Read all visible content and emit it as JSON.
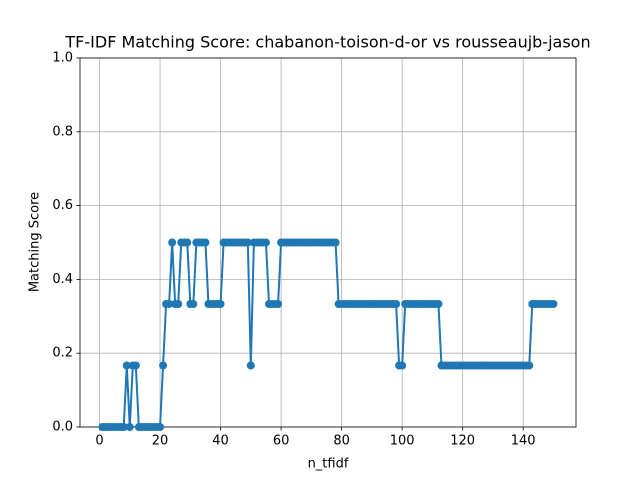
{
  "chart_data": {
    "type": "line",
    "title": "TF-IDF Matching Score: chabanon-toison-d-or vs rousseaujb-jason",
    "x_label": "n_tfidf",
    "y_label": "Matching Score",
    "color": "#1f77b4",
    "grid": true,
    "xlim": [
      -6.45,
      157.45
    ],
    "ylim": [
      0,
      1
    ],
    "xticks": [
      0,
      20,
      40,
      60,
      80,
      100,
      120,
      140
    ],
    "yticks": [
      {
        "value": 0,
        "label": "0.0"
      },
      {
        "value": 0.2,
        "label": "0.2"
      },
      {
        "value": 0.4,
        "label": "0.4"
      },
      {
        "value": 0.6,
        "label": "0.6"
      },
      {
        "value": 0.8,
        "label": "0.8"
      },
      {
        "value": 1,
        "label": "1.0"
      }
    ],
    "x": [
      1,
      2,
      3,
      4,
      5,
      6,
      7,
      8,
      9,
      10,
      11,
      12,
      13,
      14,
      15,
      16,
      17,
      18,
      19,
      20,
      21,
      22,
      23,
      24,
      25,
      26,
      27,
      28,
      29,
      30,
      31,
      32,
      33,
      34,
      35,
      36,
      37,
      38,
      39,
      40,
      41,
      42,
      43,
      44,
      45,
      46,
      47,
      48,
      49,
      50,
      51,
      52,
      53,
      54,
      55,
      56,
      57,
      58,
      59,
      60,
      61,
      62,
      63,
      64,
      65,
      66,
      67,
      68,
      69,
      70,
      71,
      72,
      73,
      74,
      75,
      76,
      77,
      78,
      79,
      80,
      81,
      82,
      83,
      84,
      85,
      86,
      87,
      88,
      89,
      90,
      91,
      92,
      93,
      94,
      95,
      96,
      97,
      98,
      99,
      100,
      101,
      102,
      103,
      104,
      105,
      106,
      107,
      108,
      109,
      110,
      111,
      112,
      113,
      114,
      115,
      116,
      117,
      118,
      119,
      120,
      121,
      122,
      123,
      124,
      125,
      126,
      127,
      128,
      129,
      130,
      131,
      132,
      133,
      134,
      135,
      136,
      137,
      138,
      139,
      140,
      141,
      142,
      143,
      144,
      145,
      146,
      147,
      148,
      149,
      150
    ],
    "values": [
      0,
      0,
      0,
      0,
      0,
      0,
      0,
      0,
      0.1667,
      0,
      0.1667,
      0.1667,
      0,
      0,
      0,
      0,
      0,
      0,
      0,
      0,
      0.1667,
      0.3333,
      0.3333,
      0.5,
      0.3333,
      0.3333,
      0.5,
      0.5,
      0.5,
      0.3333,
      0.3333,
      0.5,
      0.5,
      0.5,
      0.5,
      0.3333,
      0.3333,
      0.3333,
      0.3333,
      0.3333,
      0.5,
      0.5,
      0.5,
      0.5,
      0.5,
      0.5,
      0.5,
      0.5,
      0.5,
      0.1667,
      0.5,
      0.5,
      0.5,
      0.5,
      0.5,
      0.3333,
      0.3333,
      0.3333,
      0.3333,
      0.5,
      0.5,
      0.5,
      0.5,
      0.5,
      0.5,
      0.5,
      0.5,
      0.5,
      0.5,
      0.5,
      0.5,
      0.5,
      0.5,
      0.5,
      0.5,
      0.5,
      0.5,
      0.5,
      0.3333,
      0.3333,
      0.3333,
      0.3333,
      0.3333,
      0.3333,
      0.3333,
      0.3333,
      0.3333,
      0.3333,
      0.3333,
      0.3333,
      0.3333,
      0.3333,
      0.3333,
      0.3333,
      0.3333,
      0.3333,
      0.3333,
      0.3333,
      0.1667,
      0.1667,
      0.3333,
      0.3333,
      0.3333,
      0.3333,
      0.3333,
      0.3333,
      0.3333,
      0.3333,
      0.3333,
      0.3333,
      0.3333,
      0.3333,
      0.1667,
      0.1667,
      0.1667,
      0.1667,
      0.1667,
      0.1667,
      0.1667,
      0.1667,
      0.1667,
      0.1667,
      0.1667,
      0.1667,
      0.1667,
      0.1667,
      0.1667,
      0.1667,
      0.1667,
      0.1667,
      0.1667,
      0.1667,
      0.1667,
      0.1667,
      0.1667,
      0.1667,
      0.1667,
      0.1667,
      0.1667,
      0.1667,
      0.1667,
      0.1667,
      0.3333,
      0.3333,
      0.3333,
      0.3333,
      0.3333,
      0.3333,
      0.3333,
      0.3333
    ]
  }
}
